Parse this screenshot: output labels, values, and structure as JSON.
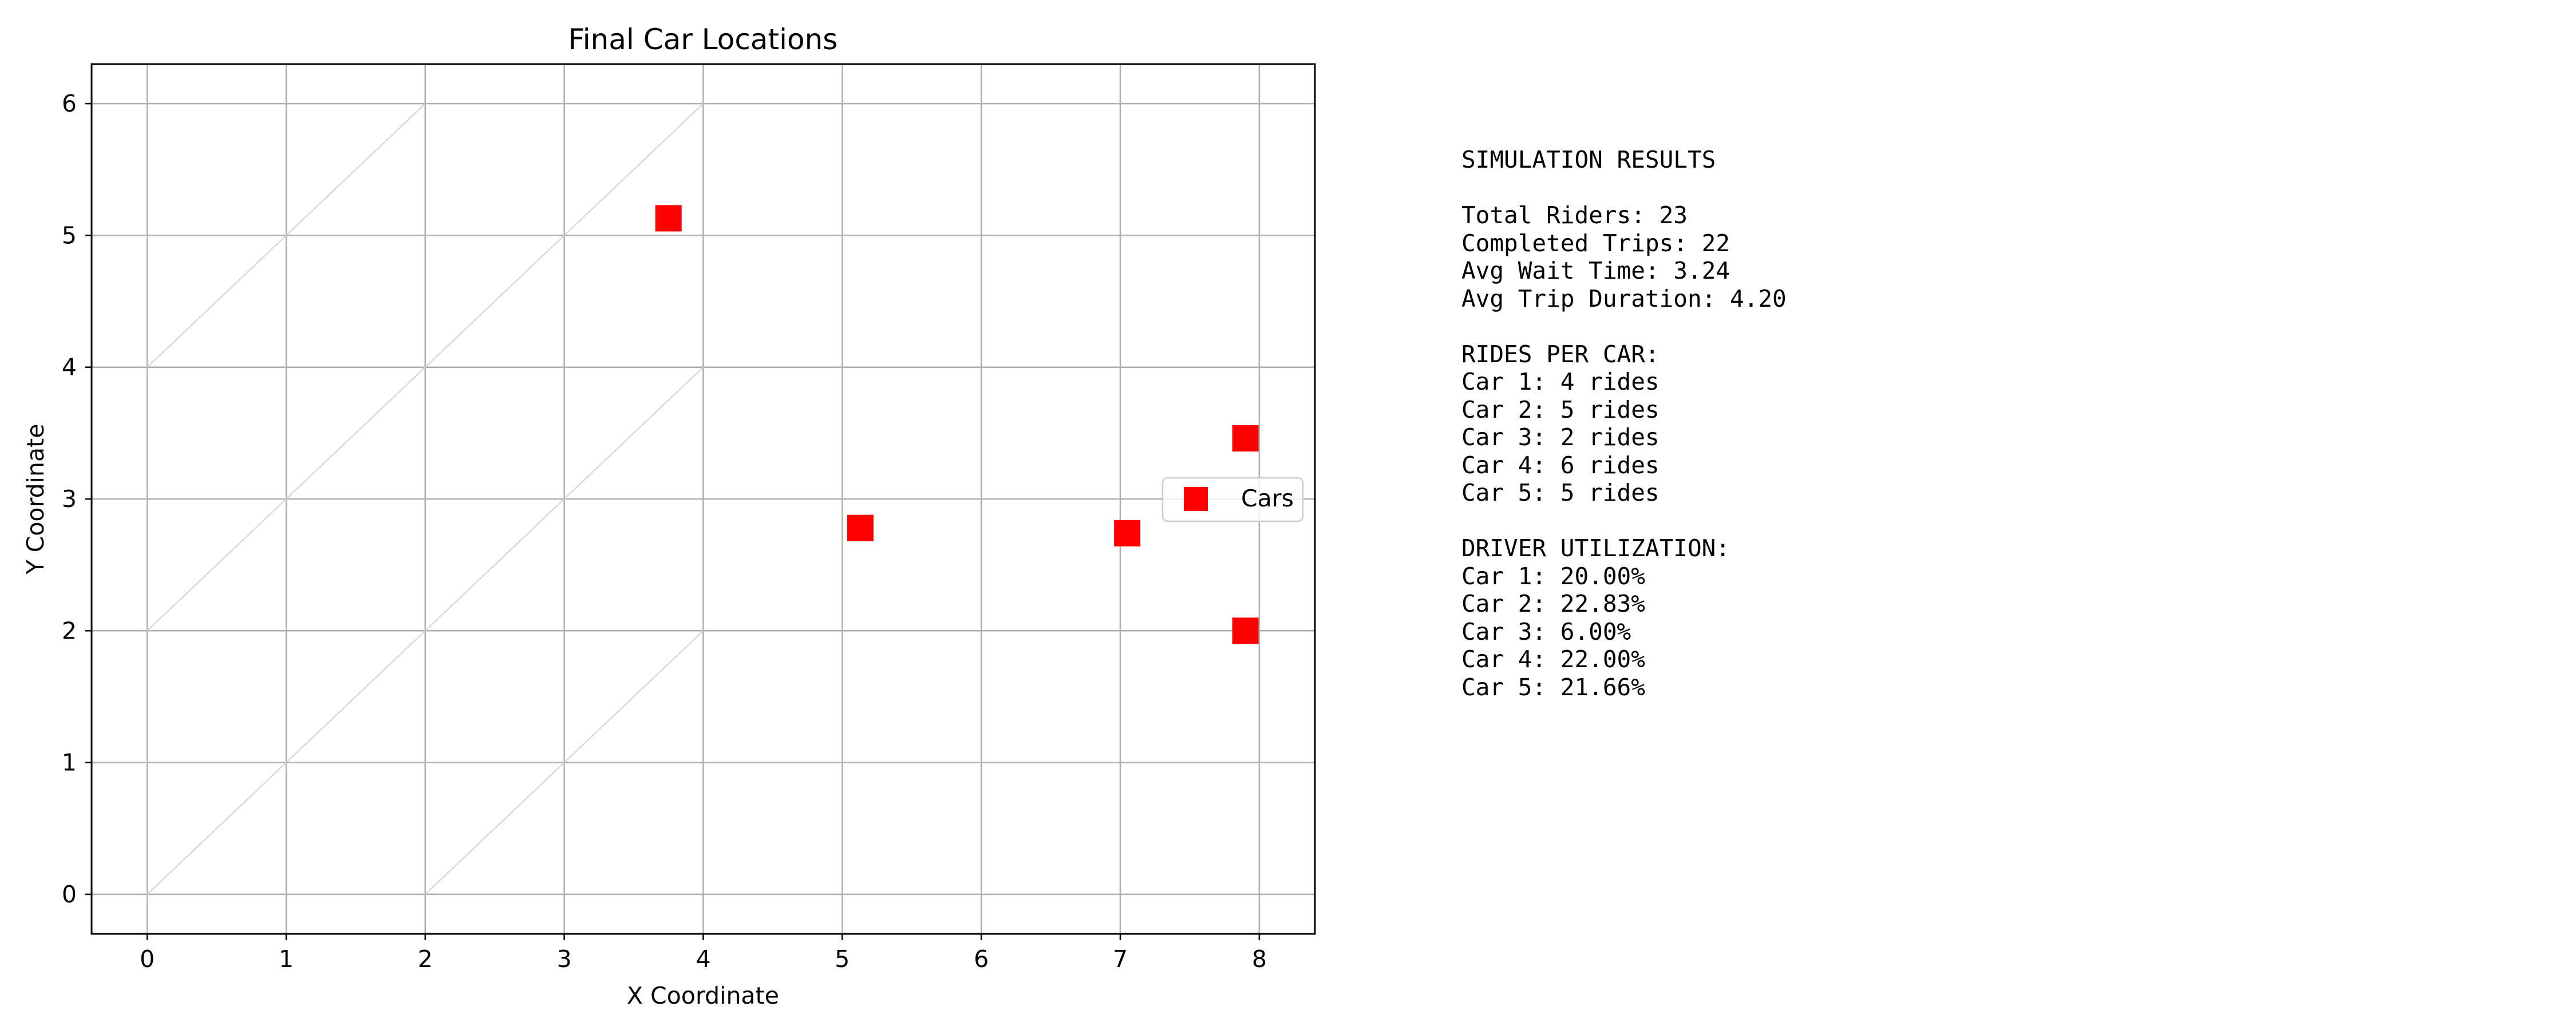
{
  "chart_data": {
    "type": "scatter",
    "title": "Final Car Locations",
    "xlabel": "X Coordinate",
    "ylabel": "Y Coordinate",
    "xlim": [
      -0.4,
      8.4
    ],
    "ylim": [
      -0.3,
      6.3
    ],
    "xticks": [
      0,
      1,
      2,
      3,
      4,
      5,
      6,
      7,
      8
    ],
    "yticks": [
      0,
      1,
      2,
      3,
      4,
      5,
      6
    ],
    "grid": true,
    "legend": "center-right",
    "background_network": {
      "nodes": [
        [
          0,
          0
        ],
        [
          1,
          1
        ],
        [
          2,
          2
        ],
        [
          3,
          3
        ],
        [
          4,
          4
        ],
        [
          2,
          0
        ],
        [
          3,
          1
        ],
        [
          4,
          2
        ],
        [
          0,
          2
        ],
        [
          1,
          3
        ],
        [
          2,
          4
        ],
        [
          3,
          5
        ],
        [
          4,
          6
        ],
        [
          0,
          4
        ],
        [
          1,
          5
        ],
        [
          2,
          6
        ]
      ],
      "edges": [
        [
          [
            0,
            0
          ],
          [
            4,
            4
          ]
        ],
        [
          [
            2,
            0
          ],
          [
            4,
            2
          ]
        ],
        [
          [
            0,
            2
          ],
          [
            4,
            6
          ]
        ],
        [
          [
            0,
            4
          ],
          [
            2,
            6
          ]
        ]
      ],
      "color": "#d3d3d3"
    },
    "series": [
      {
        "name": "Cars",
        "marker": "square",
        "color": "#ff0000",
        "points": [
          {
            "x": 3.75,
            "y": 5.13
          },
          {
            "x": 5.13,
            "y": 2.78
          },
          {
            "x": 7.05,
            "y": 2.74
          },
          {
            "x": 7.9,
            "y": 3.46
          },
          {
            "x": 7.9,
            "y": 2.0
          }
        ]
      }
    ]
  },
  "results": {
    "lines": [
      "SIMULATION RESULTS",
      "",
      "Total Riders: 23",
      "Completed Trips: 22",
      "Avg Wait Time: 3.24",
      "Avg Trip Duration: 4.20",
      "",
      "RIDES PER CAR:",
      "Car 1: 4 rides",
      "Car 2: 5 rides",
      "Car 3: 2 rides",
      "Car 4: 6 rides",
      "Car 5: 5 rides",
      "",
      "DRIVER UTILIZATION:",
      "Car 1: 20.00%",
      "Car 2: 22.83%",
      "Car 3: 6.00%",
      "Car 4: 22.00%",
      "Car 5: 21.66%"
    ]
  }
}
